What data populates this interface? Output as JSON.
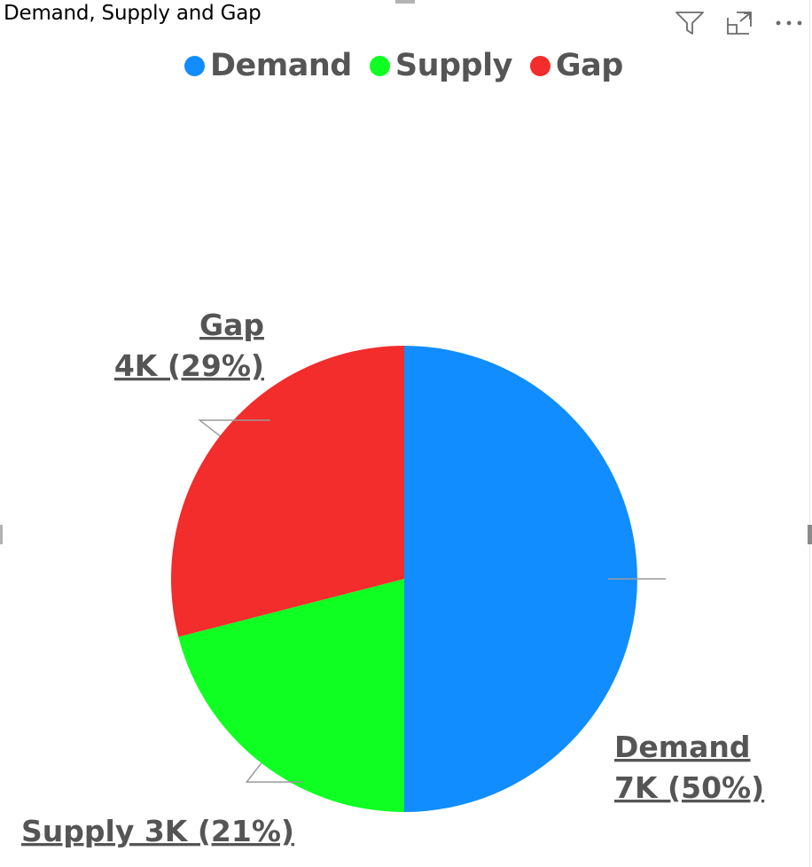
{
  "visual": {
    "title": "Demand, Supply and Gap",
    "header_icons": [
      "filter-icon",
      "focus-mode-icon",
      "more-options-icon"
    ]
  },
  "legend": {
    "items": [
      {
        "label": "Demand",
        "color": "#118DFF"
      },
      {
        "label": "Supply",
        "color": "#0FFF23"
      },
      {
        "label": "Gap",
        "color": "#F32C2C"
      }
    ]
  },
  "chart_data": {
    "type": "pie",
    "title": "Demand, Supply and Gap",
    "legend_position": "top-center",
    "slices": [
      {
        "label": "Demand",
        "value": 7,
        "percent": 50,
        "display_value": "7K",
        "display_percent": "(50%)",
        "color": "#118DFF"
      },
      {
        "label": "Supply",
        "value": 3,
        "percent": 21,
        "display_value": "3K",
        "display_percent": "(21%)",
        "color": "#0FFF23"
      },
      {
        "label": "Gap",
        "value": 4,
        "percent": 29,
        "display_value": "4K",
        "display_percent": "(29%)",
        "color": "#F32C2C"
      }
    ],
    "data_labels": {
      "Demand": {
        "line1": "Demand",
        "line2": "7K (50%)"
      },
      "Supply": {
        "line1": "Supply 3K (21%)"
      },
      "Gap": {
        "line1": "Gap",
        "line2": "4K (29%)"
      }
    }
  }
}
